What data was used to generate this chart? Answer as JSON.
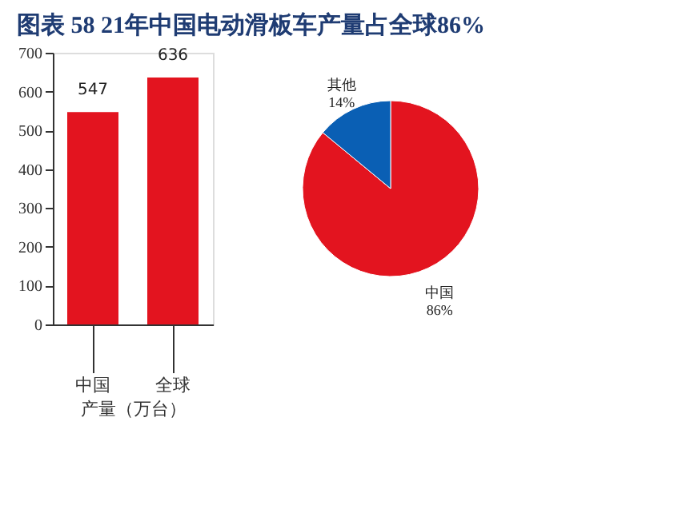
{
  "chart_data": [
    {
      "type": "bar",
      "title": "图表 58   21年中国电动滑板车产量占全球86%",
      "xlabel": "产量（万台）",
      "categories": [
        "中国",
        "全球"
      ],
      "values": [
        547,
        636
      ],
      "color": "#e3141f",
      "ylim": [
        0,
        700
      ],
      "yticks": [
        0,
        100,
        200,
        300,
        400,
        500,
        600,
        700
      ],
      "data_labels": true,
      "grid": false
    },
    {
      "type": "pie",
      "categories": [
        "中国",
        "其他"
      ],
      "values": [
        86,
        14
      ],
      "colors": [
        "#e3141f",
        "#0a5fb4"
      ],
      "value_labels": [
        "86%",
        "14%"
      ],
      "legend": false
    }
  ]
}
